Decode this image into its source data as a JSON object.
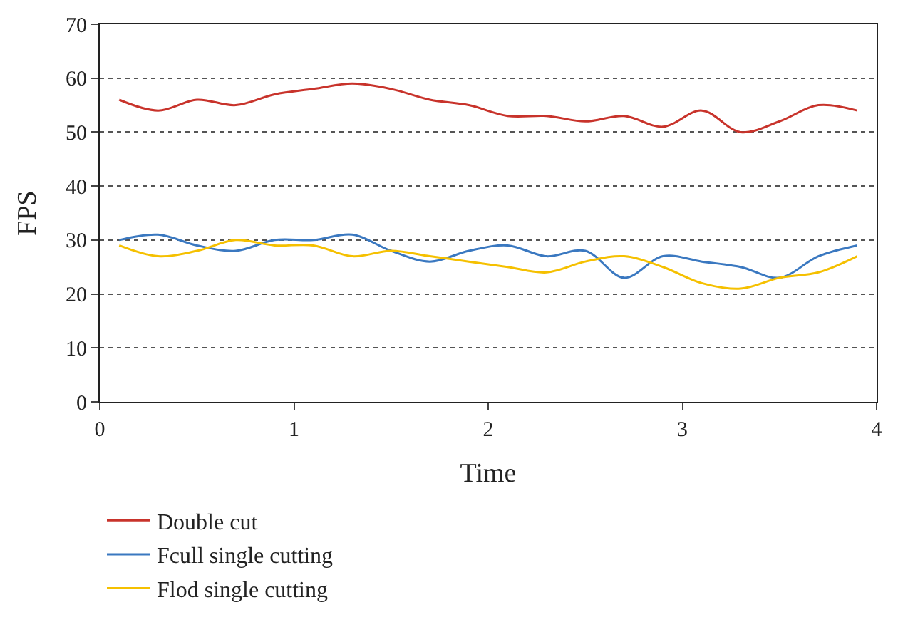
{
  "chart_data": {
    "type": "line",
    "xlabel": "Time",
    "ylabel": "FPS",
    "x": [
      0.1,
      0.3,
      0.5,
      0.7,
      0.9,
      1.1,
      1.3,
      1.5,
      1.7,
      1.9,
      2.1,
      2.3,
      2.5,
      2.7,
      2.9,
      3.1,
      3.3,
      3.5,
      3.7,
      3.9
    ],
    "series": [
      {
        "name": "Double cut",
        "color": "#c8332b",
        "values": [
          56,
          54,
          56,
          55,
          57,
          58,
          59,
          58,
          56,
          55,
          53,
          53,
          52,
          53,
          51,
          54,
          50,
          52,
          55,
          54
        ]
      },
      {
        "name": "Fcull single cutting",
        "color": "#3a78c0",
        "values": [
          30,
          31,
          29,
          28,
          30,
          30,
          31,
          28,
          26,
          28,
          29,
          27,
          28,
          23,
          27,
          26,
          25,
          23,
          27,
          29
        ]
      },
      {
        "name": "Flod single cutting",
        "color": "#f5c000",
        "values": [
          29,
          27,
          28,
          30,
          29,
          29,
          27,
          28,
          27,
          26,
          25,
          24,
          26,
          27,
          25,
          22,
          21,
          23,
          24,
          27
        ]
      }
    ],
    "xlim": [
      0,
      4
    ],
    "xticks": [
      0,
      1,
      2,
      3,
      4
    ],
    "ylim": [
      0,
      70
    ],
    "yticks": [
      0,
      10,
      20,
      30,
      40,
      50,
      60,
      70
    ],
    "grid": "y",
    "legend": "bottom",
    "marker": "none",
    "line_style": "solid"
  }
}
